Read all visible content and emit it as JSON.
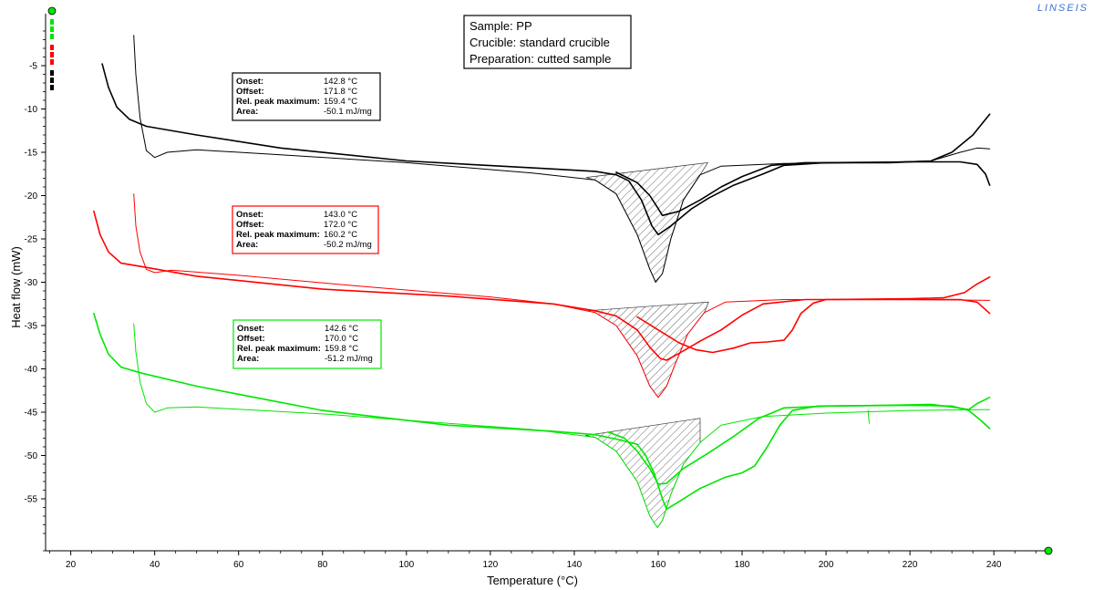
{
  "brand": "LINSEIS",
  "colors": {
    "black": "#000000",
    "red": "#ff0000",
    "green": "#00e600",
    "brand": "#3a6fd8"
  },
  "sample_box": {
    "line1": "Sample: PP",
    "line2": "Crucible: standard crucible",
    "line3": "Preparation: cutted sample"
  },
  "annotations": [
    {
      "color": "#000000",
      "onset_label": "Onset:",
      "onset": "142.8 °C",
      "offset_label": "Offset:",
      "offset": "171.8 °C",
      "peak_label": "Rel. peak maximum:",
      "peak": "159.4 °C",
      "area_label": "Area:",
      "area": "-50.1 mJ/mg"
    },
    {
      "color": "#ff0000",
      "onset_label": "Onset:",
      "onset": "143.0 °C",
      "offset_label": "Offset:",
      "offset": "172.0 °C",
      "peak_label": "Rel. peak maximum:",
      "peak": "160.2 °C",
      "area_label": "Area:",
      "area": "-50.2 mJ/mg"
    },
    {
      "color": "#00e600",
      "onset_label": "Onset:",
      "onset": "142.6 °C",
      "offset_label": "Offset:",
      "offset": "170.0 °C",
      "peak_label": "Rel. peak maximum:",
      "peak": "159.8 °C",
      "area_label": "Area:",
      "area": "-51.2 mJ/mg"
    }
  ],
  "chart_data": {
    "type": "line",
    "xlabel": "Temperature (°C)",
    "ylabel": "Heat flow (mW)",
    "xlim": [
      14,
      253
    ],
    "ylim": [
      -61,
      1
    ],
    "xticks": [
      20,
      40,
      60,
      80,
      100,
      120,
      140,
      160,
      180,
      200,
      220,
      240
    ],
    "yticks": [
      -5,
      -10,
      -15,
      -20,
      -25,
      -30,
      -35,
      -40,
      -45,
      -50,
      -55
    ],
    "grid": false,
    "series": [
      {
        "color": "#000000",
        "width": 1.0,
        "points": [
          [
            35,
            -1.5
          ],
          [
            35.5,
            -6
          ],
          [
            36.5,
            -11
          ],
          [
            38,
            -14.8
          ],
          [
            40,
            -15.6
          ],
          [
            43,
            -15
          ],
          [
            50,
            -14.7
          ],
          [
            70,
            -15.3
          ],
          [
            100,
            -16.2
          ],
          [
            130,
            -17.4
          ],
          [
            145,
            -18.2
          ],
          [
            150,
            -19.8
          ],
          [
            155,
            -24.5
          ],
          [
            158,
            -28.5
          ],
          [
            159.4,
            -30
          ],
          [
            161,
            -29
          ],
          [
            163,
            -25
          ],
          [
            166,
            -20.5
          ],
          [
            170,
            -17.6
          ],
          [
            175,
            -16.6
          ],
          [
            190,
            -16.3
          ],
          [
            210,
            -16.2
          ],
          [
            225,
            -16
          ],
          [
            232,
            -15
          ],
          [
            236,
            -14.5
          ],
          [
            239,
            -14.6
          ]
        ]
      },
      {
        "color": "#000000",
        "width": 1.6,
        "points": [
          [
            27.5,
            -4.8
          ],
          [
            29,
            -7.5
          ],
          [
            31,
            -9.8
          ],
          [
            34,
            -11.2
          ],
          [
            38,
            -12
          ],
          [
            50,
            -13
          ],
          [
            70,
            -14.5
          ],
          [
            100,
            -16
          ],
          [
            130,
            -16.8
          ],
          [
            145,
            -17.2
          ],
          [
            150,
            -17.6
          ],
          [
            153,
            -18.3
          ],
          [
            156,
            -20.5
          ],
          [
            158.5,
            -23.5
          ],
          [
            160,
            -24.5
          ],
          [
            163,
            -23.5
          ],
          [
            168,
            -21.5
          ],
          [
            172,
            -20.3
          ],
          [
            178,
            -18.8
          ],
          [
            185,
            -17.5
          ],
          [
            190,
            -16.5
          ],
          [
            200,
            -16.2
          ],
          [
            220,
            -16.1
          ],
          [
            232,
            -16.1
          ],
          [
            236,
            -16.4
          ],
          [
            238,
            -17.5
          ],
          [
            239,
            -18.8
          ]
        ]
      },
      {
        "color": "#000000",
        "width": 1.6,
        "points": [
          [
            150,
            -17.3
          ],
          [
            155,
            -18.5
          ],
          [
            158,
            -20
          ],
          [
            160,
            -21.5
          ],
          [
            161,
            -22.3
          ],
          [
            165,
            -21.8
          ],
          [
            170,
            -20.5
          ],
          [
            175,
            -19
          ],
          [
            180,
            -17.8
          ],
          [
            187,
            -16.5
          ],
          [
            195,
            -16.2
          ],
          [
            215,
            -16.2
          ],
          [
            225,
            -16
          ],
          [
            230,
            -15
          ],
          [
            235,
            -13
          ],
          [
            239,
            -10.6
          ]
        ]
      },
      {
        "color": "#ff0000",
        "width": 1.0,
        "points": [
          [
            35,
            -19.8
          ],
          [
            35.5,
            -23.5
          ],
          [
            36.5,
            -26.5
          ],
          [
            38,
            -28.5
          ],
          [
            40,
            -28.9
          ],
          [
            44,
            -28.6
          ],
          [
            60,
            -29.2
          ],
          [
            90,
            -30.5
          ],
          [
            120,
            -31.7
          ],
          [
            135,
            -32.5
          ],
          [
            145,
            -33.5
          ],
          [
            150,
            -35
          ],
          [
            155,
            -38.5
          ],
          [
            158,
            -42
          ],
          [
            160,
            -43.3
          ],
          [
            162,
            -42
          ],
          [
            164,
            -39.5
          ],
          [
            167,
            -36
          ],
          [
            171,
            -33.5
          ],
          [
            176,
            -32.3
          ],
          [
            190,
            -32
          ],
          [
            220,
            -32
          ],
          [
            239,
            -32.1
          ]
        ]
      },
      {
        "color": "#ff0000",
        "width": 1.6,
        "points": [
          [
            25.5,
            -21.8
          ],
          [
            27,
            -24.5
          ],
          [
            29,
            -26.5
          ],
          [
            32,
            -27.8
          ],
          [
            37,
            -28.2
          ],
          [
            50,
            -29.3
          ],
          [
            80,
            -30.8
          ],
          [
            110,
            -31.6
          ],
          [
            135,
            -32.5
          ],
          [
            145,
            -33.3
          ],
          [
            150,
            -33.9
          ],
          [
            155,
            -35.5
          ],
          [
            158,
            -37.5
          ],
          [
            160.5,
            -38.8
          ],
          [
            162,
            -39
          ],
          [
            165,
            -38.2
          ],
          [
            170,
            -36.8
          ],
          [
            175,
            -35.5
          ],
          [
            180,
            -33.8
          ],
          [
            185,
            -32.5
          ],
          [
            195,
            -32
          ],
          [
            225,
            -32
          ],
          [
            232,
            -32
          ],
          [
            236,
            -32.3
          ],
          [
            239,
            -33.6
          ]
        ]
      },
      {
        "color": "#ff0000",
        "width": 1.6,
        "points": [
          [
            155,
            -34
          ],
          [
            160,
            -35.5
          ],
          [
            165,
            -37
          ],
          [
            169,
            -37.8
          ],
          [
            173,
            -38.1
          ],
          [
            178,
            -37.6
          ],
          [
            182,
            -37
          ],
          [
            186,
            -36.9
          ],
          [
            190,
            -36.7
          ],
          [
            192,
            -35.5
          ],
          [
            194,
            -33.6
          ],
          [
            197,
            -32.4
          ],
          [
            200,
            -32
          ],
          [
            220,
            -31.9
          ],
          [
            228,
            -31.8
          ],
          [
            233,
            -31.2
          ],
          [
            236,
            -30.2
          ],
          [
            239,
            -29.4
          ]
        ]
      },
      {
        "color": "#00e600",
        "width": 1.0,
        "points": [
          [
            35,
            -34.8
          ],
          [
            35.5,
            -38
          ],
          [
            36.5,
            -41.5
          ],
          [
            38,
            -44
          ],
          [
            40,
            -45
          ],
          [
            43,
            -44.5
          ],
          [
            50,
            -44.4
          ],
          [
            80,
            -45.2
          ],
          [
            110,
            -46.3
          ],
          [
            130,
            -47
          ],
          [
            145,
            -47.9
          ],
          [
            150,
            -49.5
          ],
          [
            155,
            -53
          ],
          [
            158,
            -57
          ],
          [
            159.8,
            -58.3
          ],
          [
            161,
            -57.5
          ],
          [
            163,
            -54.5
          ],
          [
            166,
            -51
          ],
          [
            170,
            -48.5
          ],
          [
            175,
            -46.5
          ],
          [
            185,
            -45.5
          ],
          [
            200,
            -45.1
          ],
          [
            220,
            -44.8
          ],
          [
            239,
            -44.7
          ]
        ]
      },
      {
        "color": "#00e600",
        "width": 1.6,
        "points": [
          [
            25.5,
            -33.6
          ],
          [
            27,
            -36
          ],
          [
            29,
            -38.3
          ],
          [
            32,
            -39.8
          ],
          [
            37,
            -40.5
          ],
          [
            50,
            -42
          ],
          [
            80,
            -44.8
          ],
          [
            110,
            -46.5
          ],
          [
            135,
            -47.2
          ],
          [
            145,
            -47.6
          ],
          [
            150,
            -48.1
          ],
          [
            155,
            -48.7
          ],
          [
            157,
            -50
          ],
          [
            159,
            -52
          ],
          [
            161,
            -55
          ],
          [
            162,
            -56.2
          ],
          [
            165,
            -55.3
          ],
          [
            170,
            -53.8
          ],
          [
            176,
            -52.5
          ],
          [
            180,
            -52
          ],
          [
            183,
            -51.2
          ],
          [
            186,
            -49
          ],
          [
            189,
            -46.5
          ],
          [
            192,
            -44.8
          ],
          [
            198,
            -44.3
          ],
          [
            220,
            -44.2
          ],
          [
            230,
            -44.3
          ],
          [
            234,
            -44.8
          ],
          [
            237,
            -46
          ],
          [
            239,
            -46.9
          ]
        ]
      },
      {
        "color": "#00e600",
        "width": 1.6,
        "points": [
          [
            148,
            -47.3
          ],
          [
            152,
            -48
          ],
          [
            155,
            -49.5
          ],
          [
            158,
            -51.5
          ],
          [
            160,
            -53.3
          ],
          [
            162,
            -53.2
          ],
          [
            166,
            -51.5
          ],
          [
            172,
            -49.7
          ],
          [
            178,
            -47.8
          ],
          [
            184,
            -45.7
          ],
          [
            190,
            -44.5
          ],
          [
            200,
            -44.3
          ],
          [
            215,
            -44.2
          ],
          [
            225,
            -44.1
          ],
          [
            230,
            -44.4
          ],
          [
            234,
            -44.7
          ],
          [
            236,
            -44
          ],
          [
            239,
            -43.3
          ]
        ]
      },
      {
        "color": "#00e600",
        "width": 1.0,
        "points": [
          [
            210,
            -44.8
          ],
          [
            210.3,
            -46.3
          ]
        ]
      }
    ],
    "hatched_regions": [
      {
        "color": "#000000",
        "baseline_from": [
          142.8,
          -17.9
        ],
        "baseline_to": [
          171.8,
          -16.2
        ]
      },
      {
        "color": "#000000",
        "baseline_from": [
          143.0,
          -33.3
        ],
        "baseline_to": [
          172.0,
          -32.3
        ]
      },
      {
        "color": "#000000",
        "baseline_from": [
          142.6,
          -47.7
        ],
        "baseline_to": [
          170.0,
          -45.7
        ]
      }
    ]
  }
}
